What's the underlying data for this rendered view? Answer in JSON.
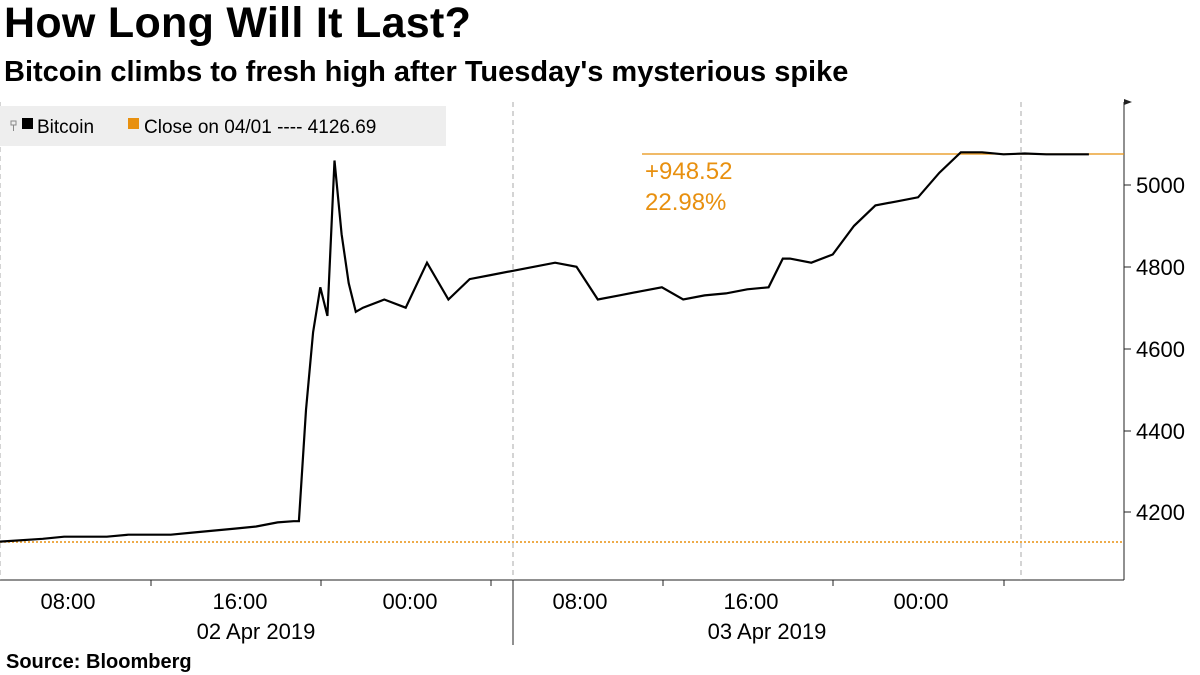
{
  "title": "How Long Will It Last?",
  "subtitle": "Bitcoin climbs to fresh high after Tuesday's mysterious spike",
  "source": "Source: Bloomberg",
  "colors": {
    "series": "#000000",
    "reference": "#e8900f",
    "grid": "#aaaaaa",
    "legend_bg": "#eeeeee"
  },
  "chart_data": {
    "type": "line",
    "series": [
      {
        "name": "Bitcoin",
        "x": [
          "2019-04-02 00:00",
          "2019-04-02 02:00",
          "2019-04-02 03:00",
          "2019-04-02 05:00",
          "2019-04-02 06:00",
          "2019-04-02 08:00",
          "2019-04-02 09:00",
          "2019-04-02 10:00",
          "2019-04-02 11:00",
          "2019-04-02 12:00",
          "2019-04-02 13:00",
          "2019-04-02 13:45",
          "2019-04-02 14:00",
          "2019-04-02 14:20",
          "2019-04-02 14:40",
          "2019-04-02 15:00",
          "2019-04-02 15:20",
          "2019-04-02 15:40",
          "2019-04-02 16:00",
          "2019-04-02 16:20",
          "2019-04-02 16:40",
          "2019-04-02 17:00",
          "2019-04-02 18:00",
          "2019-04-02 19:00",
          "2019-04-02 20:00",
          "2019-04-02 21:00",
          "2019-04-02 22:00",
          "2019-04-02 23:00",
          "2019-04-03 00:00",
          "2019-04-03 01:00",
          "2019-04-03 02:00",
          "2019-04-03 03:00",
          "2019-04-03 04:00",
          "2019-04-03 05:00",
          "2019-04-03 06:00",
          "2019-04-03 07:00",
          "2019-04-03 08:00",
          "2019-04-03 09:00",
          "2019-04-03 10:00",
          "2019-04-03 11:00",
          "2019-04-03 12:00",
          "2019-04-03 12:40",
          "2019-04-03 13:00",
          "2019-04-03 14:00",
          "2019-04-03 15:00",
          "2019-04-03 16:00",
          "2019-04-03 17:00",
          "2019-04-03 18:00",
          "2019-04-03 19:00",
          "2019-04-03 20:00",
          "2019-04-03 21:00",
          "2019-04-03 22:00",
          "2019-04-03 23:00",
          "2019-04-04 00:00",
          "2019-04-04 01:00",
          "2019-04-04 02:00",
          "2019-04-04 03:00"
        ],
        "y": [
          4128,
          4135,
          4140,
          4140,
          4145,
          4145,
          4150,
          4155,
          4160,
          4165,
          4175,
          4178,
          4178,
          4450,
          4640,
          4750,
          4680,
          5060,
          4880,
          4760,
          4690,
          4700,
          4720,
          4700,
          4810,
          4720,
          4770,
          4780,
          4790,
          4800,
          4810,
          4800,
          4720,
          4730,
          4740,
          4750,
          4720,
          4730,
          4735,
          4745,
          4750,
          4820,
          4820,
          4810,
          4830,
          4900,
          4950,
          4960,
          4970,
          5030,
          5080,
          5080,
          5075,
          5077,
          5075,
          5075,
          5075
        ],
        "note": "values are approximate readings of the plotted line; see markup for drawn polyline"
      }
    ],
    "reference_line": {
      "label": "Close on 04/01 ---- 4126.69",
      "value": 4126.69
    },
    "annotation": {
      "change": "+948.52",
      "percent": "22.98%"
    },
    "y_ticks": [
      "4200",
      "4400",
      "4600",
      "4800",
      "5000"
    ],
    "x_ticks": [
      "08:00",
      "16:00",
      "00:00",
      "08:00",
      "16:00",
      "00:00"
    ],
    "x_date_labels": [
      "02 Apr 2019",
      "03 Apr 2019"
    ],
    "ylim": [
      4060,
      5230
    ],
    "grid": "vertical dashed",
    "legend_position": "top-left"
  }
}
